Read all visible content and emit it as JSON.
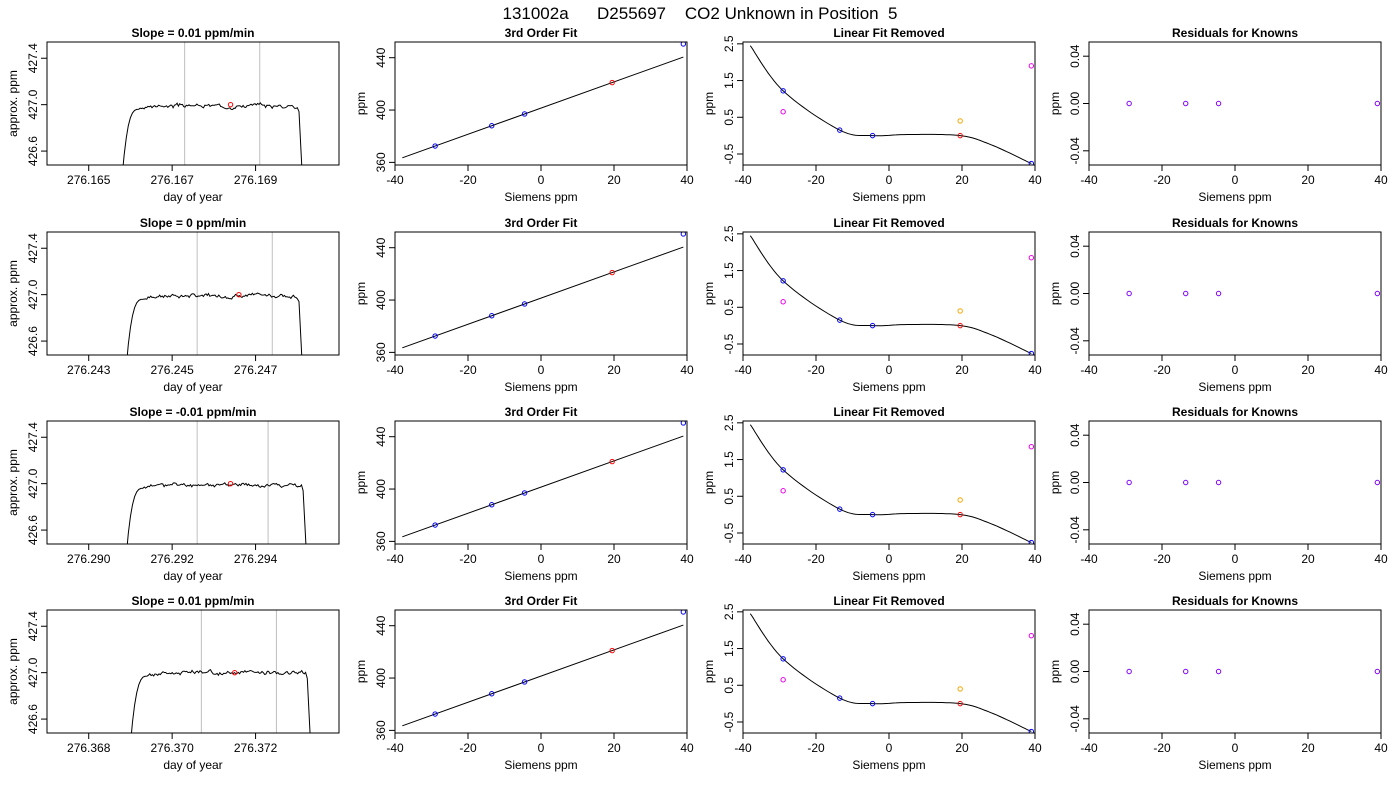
{
  "figure": {
    "title": "131002a      D255697    CO2 Unknown in Position  5"
  },
  "chart_data": [
    {
      "row": 1,
      "col": 1,
      "kind": "timeseries",
      "type": "line",
      "title": "Slope =  0.01  ppm/min",
      "xlabel": "day of year",
      "ylabel": "approx. ppm",
      "xlim": [
        276.164,
        276.171
      ],
      "ylim": [
        426.48,
        427.54
      ],
      "xticks": [
        276.165,
        276.167,
        276.169
      ],
      "xtick_labels": [
        "276.165",
        "276.167",
        "276.169"
      ],
      "yticks": [
        426.6,
        427.0,
        427.4
      ],
      "ytick_labels": [
        "426.6",
        "427.0",
        "427.4"
      ],
      "vlines": [
        276.1673,
        276.1691
      ],
      "red_point": [
        276.1684,
        427.0
      ],
      "trace": {
        "start": 276.1658,
        "rise_end": 276.1662,
        "end": 276.17,
        "plateau": 426.99,
        "noise_seed": 3
      }
    },
    {
      "row": 1,
      "col": 2,
      "kind": "fit",
      "type": "scatter",
      "title": "3rd Order Fit",
      "xlabel": "Siemens ppm",
      "ylabel": "ppm",
      "xlim": [
        -40,
        40
      ],
      "ylim": [
        358,
        452
      ],
      "xticks": [
        -40,
        -20,
        0,
        20,
        40
      ],
      "xtick_labels": [
        "-40",
        "-20",
        "0",
        "20",
        "40"
      ],
      "yticks": [
        360,
        400,
        440
      ],
      "ytick_labels": [
        "360",
        "400",
        "440"
      ],
      "fit": {
        "slope": 1.0,
        "intercept": 401.5,
        "from": -38,
        "to": 39
      },
      "points_blue": [
        [
          -29,
          372.5
        ],
        [
          -13.5,
          388.0
        ],
        [
          -4.5,
          397.0
        ],
        [
          39,
          450.5
        ]
      ],
      "points_red": [
        [
          19.5,
          421.0
        ]
      ]
    },
    {
      "row": 1,
      "col": 3,
      "kind": "residual_curve",
      "type": "scatter",
      "title": "Linear Fit Removed",
      "xlabel": "Siemens ppm",
      "ylabel": "ppm",
      "xlim": [
        -40,
        40
      ],
      "ylim": [
        -0.8,
        2.55
      ],
      "xticks": [
        -40,
        -20,
        0,
        20,
        40
      ],
      "xtick_labels": [
        "-40",
        "-20",
        "0",
        "20",
        "40"
      ],
      "yticks": [
        -0.5,
        0.5,
        1.5,
        2.5
      ],
      "ytick_labels": [
        "-0.5",
        "0.5",
        "1.5",
        "2.5"
      ],
      "curve_knots": [
        [
          -38,
          2.45
        ],
        [
          -29,
          1.22
        ],
        [
          -13.5,
          0.15
        ],
        [
          -4.5,
          0.0
        ],
        [
          5,
          0.03
        ],
        [
          19.5,
          0.0
        ],
        [
          28,
          -0.25
        ],
        [
          39,
          -0.76
        ]
      ],
      "points_blue": [
        [
          -29,
          1.22
        ],
        [
          -13.5,
          0.15
        ],
        [
          -4.5,
          0.0
        ],
        [
          39,
          -0.76
        ]
      ],
      "points_red": [
        [
          19.5,
          0.0
        ]
      ],
      "points_magenta": [
        [
          -29,
          0.65
        ],
        [
          39,
          1.9
        ]
      ],
      "points_orange": [
        [
          19.5,
          0.4
        ]
      ]
    },
    {
      "row": 1,
      "col": 4,
      "kind": "knowns",
      "type": "scatter",
      "title": "Residuals for Knowns",
      "xlabel": "Siemens ppm",
      "ylabel": "ppm",
      "xlim": [
        -40,
        40
      ],
      "ylim": [
        -0.052,
        0.052
      ],
      "xticks": [
        -40,
        -20,
        0,
        20,
        40
      ],
      "xtick_labels": [
        "-40",
        "-20",
        "0",
        "20",
        "40"
      ],
      "yticks": [
        -0.04,
        0.0,
        0.04
      ],
      "ytick_labels": [
        "-0.04",
        "0.00",
        "0.04"
      ],
      "points": [
        [
          -29,
          0.0
        ],
        [
          -13.5,
          0.0
        ],
        [
          -4.5,
          0.0
        ],
        [
          39,
          0.0
        ]
      ]
    },
    {
      "row": 2,
      "col": 1,
      "kind": "timeseries",
      "type": "line",
      "title": "Slope =  0  ppm/min",
      "xlabel": "day of year",
      "ylabel": "approx. ppm",
      "xlim": [
        276.242,
        276.249
      ],
      "ylim": [
        426.48,
        427.54
      ],
      "xticks": [
        276.243,
        276.245,
        276.247
      ],
      "xtick_labels": [
        "276.243",
        "276.245",
        "276.247"
      ],
      "yticks": [
        426.6,
        427.0,
        427.4
      ],
      "ytick_labels": [
        "426.6",
        "427.0",
        "427.4"
      ],
      "vlines": [
        276.2456,
        276.2474
      ],
      "red_point": [
        276.2466,
        427.0
      ],
      "trace": {
        "start": 276.2439,
        "rise_end": 276.2443,
        "end": 276.248,
        "plateau": 426.99,
        "noise_seed": 7
      }
    },
    {
      "row": 2,
      "col": 2,
      "kind": "fit",
      "type": "scatter",
      "title": "3rd Order Fit",
      "xlabel": "Siemens ppm",
      "ylabel": "ppm",
      "xlim": [
        -40,
        40
      ],
      "ylim": [
        358,
        452
      ],
      "xticks": [
        -40,
        -20,
        0,
        20,
        40
      ],
      "xtick_labels": [
        "-40",
        "-20",
        "0",
        "20",
        "40"
      ],
      "yticks": [
        360,
        400,
        440
      ],
      "ytick_labels": [
        "360",
        "400",
        "440"
      ],
      "fit": {
        "slope": 1.0,
        "intercept": 401.5,
        "from": -38,
        "to": 39
      },
      "points_blue": [
        [
          -29,
          372.5
        ],
        [
          -13.5,
          388.0
        ],
        [
          -4.5,
          397.0
        ],
        [
          39,
          450.5
        ]
      ],
      "points_red": [
        [
          19.5,
          421.0
        ]
      ]
    },
    {
      "row": 2,
      "col": 3,
      "kind": "residual_curve",
      "type": "scatter",
      "title": "Linear Fit Removed",
      "xlabel": "Siemens ppm",
      "ylabel": "ppm",
      "xlim": [
        -40,
        40
      ],
      "ylim": [
        -0.8,
        2.55
      ],
      "xticks": [
        -40,
        -20,
        0,
        20,
        40
      ],
      "xtick_labels": [
        "-40",
        "-20",
        "0",
        "20",
        "40"
      ],
      "yticks": [
        -0.5,
        0.5,
        1.5,
        2.5
      ],
      "ytick_labels": [
        "-0.5",
        "0.5",
        "1.5",
        "2.5"
      ],
      "curve_knots": [
        [
          -38,
          2.45
        ],
        [
          -29,
          1.22
        ],
        [
          -13.5,
          0.15
        ],
        [
          -4.5,
          0.0
        ],
        [
          5,
          0.03
        ],
        [
          19.5,
          0.0
        ],
        [
          28,
          -0.25
        ],
        [
          39,
          -0.76
        ]
      ],
      "points_blue": [
        [
          -29,
          1.22
        ],
        [
          -13.5,
          0.15
        ],
        [
          -4.5,
          0.0
        ],
        [
          39,
          -0.76
        ]
      ],
      "points_red": [
        [
          19.5,
          0.0
        ]
      ],
      "points_magenta": [
        [
          -29,
          0.65
        ],
        [
          39,
          1.85
        ]
      ],
      "points_orange": [
        [
          19.5,
          0.4
        ]
      ]
    },
    {
      "row": 2,
      "col": 4,
      "kind": "knowns",
      "type": "scatter",
      "title": "Residuals for Knowns",
      "xlabel": "Siemens ppm",
      "ylabel": "ppm",
      "xlim": [
        -40,
        40
      ],
      "ylim": [
        -0.052,
        0.052
      ],
      "xticks": [
        -40,
        -20,
        0,
        20,
        40
      ],
      "xtick_labels": [
        "-40",
        "-20",
        "0",
        "20",
        "40"
      ],
      "yticks": [
        -0.04,
        0.0,
        0.04
      ],
      "ytick_labels": [
        "-0.04",
        "0.00",
        "0.04"
      ],
      "points": [
        [
          -29,
          0.0
        ],
        [
          -13.5,
          0.0
        ],
        [
          -4.5,
          0.0
        ],
        [
          39,
          0.0
        ]
      ]
    },
    {
      "row": 3,
      "col": 1,
      "kind": "timeseries",
      "type": "line",
      "title": "Slope =  -0.01  ppm/min",
      "xlabel": "day of year",
      "ylabel": "approx. ppm",
      "xlim": [
        276.289,
        276.296
      ],
      "ylim": [
        426.48,
        427.54
      ],
      "xticks": [
        276.29,
        276.292,
        276.294
      ],
      "xtick_labels": [
        "276.290",
        "276.292",
        "276.294"
      ],
      "yticks": [
        426.6,
        427.0,
        427.4
      ],
      "ytick_labels": [
        "426.6",
        "427.0",
        "427.4"
      ],
      "vlines": [
        276.2926,
        276.2943
      ],
      "red_point": [
        276.2934,
        427.0
      ],
      "trace": {
        "start": 276.2909,
        "rise_end": 276.2913,
        "end": 276.2951,
        "plateau": 426.99,
        "noise_seed": 11
      }
    },
    {
      "row": 3,
      "col": 2,
      "kind": "fit",
      "type": "scatter",
      "title": "3rd Order Fit",
      "xlabel": "Siemens ppm",
      "ylabel": "ppm",
      "xlim": [
        -40,
        40
      ],
      "ylim": [
        358,
        452
      ],
      "xticks": [
        -40,
        -20,
        0,
        20,
        40
      ],
      "xtick_labels": [
        "-40",
        "-20",
        "0",
        "20",
        "40"
      ],
      "yticks": [
        360,
        400,
        440
      ],
      "ytick_labels": [
        "360",
        "400",
        "440"
      ],
      "fit": {
        "slope": 1.0,
        "intercept": 401.5,
        "from": -38,
        "to": 39
      },
      "points_blue": [
        [
          -29,
          372.5
        ],
        [
          -13.5,
          388.0
        ],
        [
          -4.5,
          397.0
        ],
        [
          39,
          450.5
        ]
      ],
      "points_red": [
        [
          19.5,
          421.0
        ]
      ]
    },
    {
      "row": 3,
      "col": 3,
      "kind": "residual_curve",
      "type": "scatter",
      "title": "Linear Fit Removed",
      "xlabel": "Siemens ppm",
      "ylabel": "ppm",
      "xlim": [
        -40,
        40
      ],
      "ylim": [
        -0.8,
        2.55
      ],
      "xticks": [
        -40,
        -20,
        0,
        20,
        40
      ],
      "xtick_labels": [
        "-40",
        "-20",
        "0",
        "20",
        "40"
      ],
      "yticks": [
        -0.5,
        0.5,
        1.5,
        2.5
      ],
      "ytick_labels": [
        "-0.5",
        "0.5",
        "1.5",
        "2.5"
      ],
      "curve_knots": [
        [
          -38,
          2.45
        ],
        [
          -29,
          1.22
        ],
        [
          -13.5,
          0.15
        ],
        [
          -4.5,
          0.0
        ],
        [
          5,
          0.03
        ],
        [
          19.5,
          0.0
        ],
        [
          28,
          -0.25
        ],
        [
          39,
          -0.76
        ]
      ],
      "points_blue": [
        [
          -29,
          1.22
        ],
        [
          -13.5,
          0.15
        ],
        [
          -4.5,
          0.0
        ],
        [
          39,
          -0.76
        ]
      ],
      "points_red": [
        [
          19.5,
          0.0
        ]
      ],
      "points_magenta": [
        [
          -29,
          0.65
        ],
        [
          39,
          1.85
        ]
      ],
      "points_orange": [
        [
          19.5,
          0.4
        ]
      ]
    },
    {
      "row": 3,
      "col": 4,
      "kind": "knowns",
      "type": "scatter",
      "title": "Residuals for Knowns",
      "xlabel": "Siemens ppm",
      "ylabel": "ppm",
      "xlim": [
        -40,
        40
      ],
      "ylim": [
        -0.052,
        0.052
      ],
      "xticks": [
        -40,
        -20,
        0,
        20,
        40
      ],
      "xtick_labels": [
        "-40",
        "-20",
        "0",
        "20",
        "40"
      ],
      "yticks": [
        -0.04,
        0.0,
        0.04
      ],
      "ytick_labels": [
        "-0.04",
        "0.00",
        "0.04"
      ],
      "points": [
        [
          -29,
          0.0
        ],
        [
          -13.5,
          0.0
        ],
        [
          -4.5,
          0.0
        ],
        [
          39,
          0.0
        ]
      ]
    },
    {
      "row": 4,
      "col": 1,
      "kind": "timeseries",
      "type": "line",
      "title": "Slope =  0.01  ppm/min",
      "xlabel": "day of year",
      "ylabel": "approx. ppm",
      "xlim": [
        276.367,
        276.374
      ],
      "ylim": [
        426.48,
        427.54
      ],
      "xticks": [
        276.368,
        276.37,
        276.372
      ],
      "xtick_labels": [
        "276.368",
        "276.370",
        "276.372"
      ],
      "yticks": [
        426.6,
        427.0,
        427.4
      ],
      "ytick_labels": [
        "426.6",
        "427.0",
        "427.4"
      ],
      "vlines": [
        276.3707,
        276.3725
      ],
      "red_point": [
        276.3715,
        427.0
      ],
      "trace": {
        "start": 276.369,
        "rise_end": 276.3694,
        "end": 276.3732,
        "plateau": 427.0,
        "noise_seed": 17
      }
    },
    {
      "row": 4,
      "col": 2,
      "kind": "fit",
      "type": "scatter",
      "title": "3rd Order Fit",
      "xlabel": "Siemens ppm",
      "ylabel": "ppm",
      "xlim": [
        -40,
        40
      ],
      "ylim": [
        358,
        452
      ],
      "xticks": [
        -40,
        -20,
        0,
        20,
        40
      ],
      "xtick_labels": [
        "-40",
        "-20",
        "0",
        "20",
        "40"
      ],
      "yticks": [
        360,
        400,
        440
      ],
      "ytick_labels": [
        "360",
        "400",
        "440"
      ],
      "fit": {
        "slope": 1.0,
        "intercept": 401.5,
        "from": -38,
        "to": 39
      },
      "points_blue": [
        [
          -29,
          372.5
        ],
        [
          -13.5,
          388.0
        ],
        [
          -4.5,
          397.0
        ],
        [
          39,
          450.5
        ]
      ],
      "points_red": [
        [
          19.5,
          421.0
        ]
      ]
    },
    {
      "row": 4,
      "col": 3,
      "kind": "residual_curve",
      "type": "scatter",
      "title": "Linear Fit Removed",
      "xlabel": "Siemens ppm",
      "ylabel": "ppm",
      "xlim": [
        -40,
        40
      ],
      "ylim": [
        -0.8,
        2.55
      ],
      "xticks": [
        -40,
        -20,
        0,
        20,
        40
      ],
      "xtick_labels": [
        "-40",
        "-20",
        "0",
        "20",
        "40"
      ],
      "yticks": [
        -0.5,
        0.5,
        1.5,
        2.5
      ],
      "ytick_labels": [
        "-0.5",
        "0.5",
        "1.5",
        "2.5"
      ],
      "curve_knots": [
        [
          -38,
          2.45
        ],
        [
          -29,
          1.22
        ],
        [
          -13.5,
          0.15
        ],
        [
          -4.5,
          0.0
        ],
        [
          5,
          0.03
        ],
        [
          19.5,
          0.0
        ],
        [
          28,
          -0.25
        ],
        [
          39,
          -0.76
        ]
      ],
      "points_blue": [
        [
          -29,
          1.22
        ],
        [
          -13.5,
          0.15
        ],
        [
          -4.5,
          0.0
        ],
        [
          39,
          -0.76
        ]
      ],
      "points_red": [
        [
          19.5,
          0.0
        ]
      ],
      "points_magenta": [
        [
          -29,
          0.65
        ],
        [
          39,
          1.85
        ]
      ],
      "points_orange": [
        [
          19.5,
          0.4
        ]
      ]
    },
    {
      "row": 4,
      "col": 4,
      "kind": "knowns",
      "type": "scatter",
      "title": "Residuals for Knowns",
      "xlabel": "Siemens ppm",
      "ylabel": "ppm",
      "xlim": [
        -40,
        40
      ],
      "ylim": [
        -0.052,
        0.052
      ],
      "xticks": [
        -40,
        -20,
        0,
        20,
        40
      ],
      "xtick_labels": [
        "-40",
        "-20",
        "0",
        "20",
        "40"
      ],
      "yticks": [
        -0.04,
        0.0,
        0.04
      ],
      "ytick_labels": [
        "-0.04",
        "0.00",
        "0.04"
      ],
      "points": [
        [
          -29,
          0.0
        ],
        [
          -13.5,
          0.0
        ],
        [
          -4.5,
          0.0
        ],
        [
          39,
          0.0
        ]
      ]
    }
  ],
  "colors": {
    "axis": "#000000",
    "trace": "#000000",
    "vline": "#bebebe",
    "blue": "#0000ff",
    "red": "#ff0000",
    "magenta": "#ee00ee",
    "orange": "#ffa500",
    "purple": "#8000ff"
  }
}
